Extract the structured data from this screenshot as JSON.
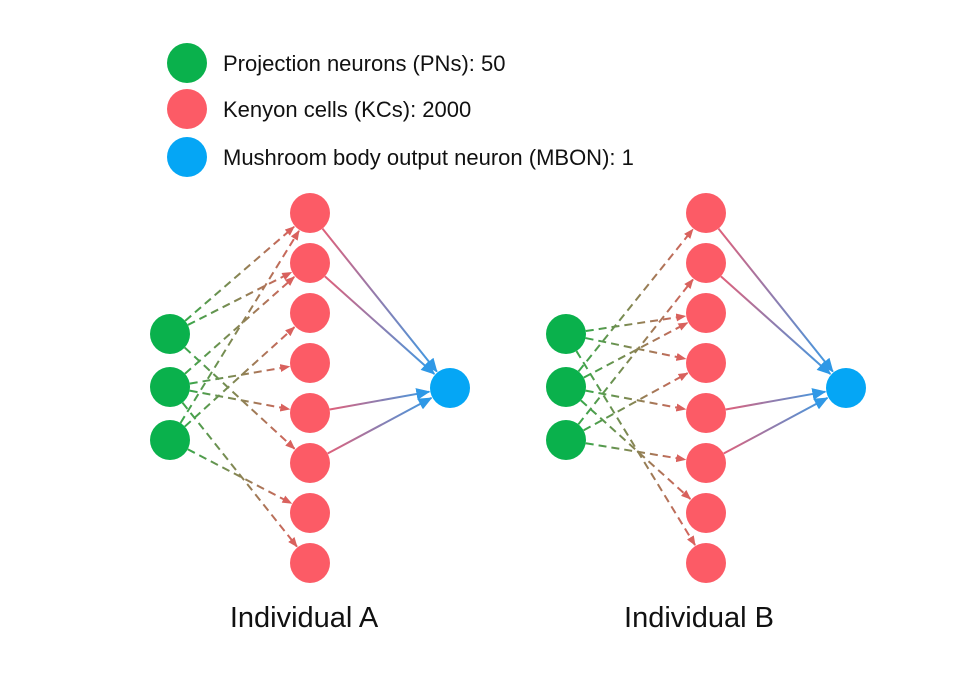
{
  "colors": {
    "pn": "#0ab14c",
    "kc": "#fc5b66",
    "mbon": "#05a6f5",
    "pn_edge_green": "#3aa64a",
    "pn_edge_mix": "#9a8a55",
    "pn_edge_red": "#d9615d",
    "kc_edge_start": "#e0607a",
    "kc_edge_end": "#3a9be6"
  },
  "legend": [
    {
      "label": "Projection neurons (PNs): 50",
      "color": "pn"
    },
    {
      "label": "Kenyon cells (KCs): 2000",
      "color": "kc"
    },
    {
      "label": "Mushroom body output neuron (MBON): 1",
      "color": "mbon"
    }
  ],
  "networks": [
    {
      "caption": "Individual A",
      "pn_to_kc": [
        [
          0,
          0
        ],
        [
          0,
          1
        ],
        [
          0,
          5
        ],
        [
          1,
          1
        ],
        [
          1,
          3
        ],
        [
          1,
          4
        ],
        [
          1,
          7
        ],
        [
          2,
          0
        ],
        [
          2,
          2
        ],
        [
          2,
          6
        ]
      ],
      "kc_to_mbon": [
        0,
        1,
        4,
        5
      ]
    },
    {
      "caption": "Individual B",
      "pn_to_kc": [
        [
          0,
          2
        ],
        [
          0,
          3
        ],
        [
          0,
          7
        ],
        [
          1,
          0
        ],
        [
          1,
          2
        ],
        [
          1,
          4
        ],
        [
          1,
          6
        ],
        [
          2,
          1
        ],
        [
          2,
          3
        ],
        [
          2,
          5
        ]
      ],
      "kc_to_mbon": [
        0,
        1,
        4,
        5
      ]
    }
  ]
}
